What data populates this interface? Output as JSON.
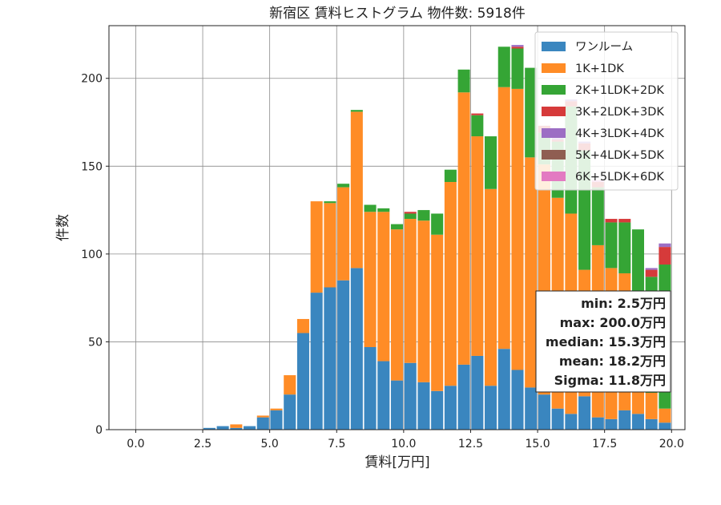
{
  "chart_data": {
    "type": "bar",
    "stacked": true,
    "title": "新宿区 賃料ヒストグラム  物件数: 5918件",
    "xlabel": "賃料[万円]",
    "ylabel": "件数",
    "xlim": [
      -1.0,
      20.5
    ],
    "ylim": [
      0,
      230
    ],
    "xticks": [
      0.0,
      2.5,
      5.0,
      7.5,
      10.0,
      12.5,
      15.0,
      17.5,
      20.0
    ],
    "xtick_labels": [
      "0.0",
      "2.5",
      "5.0",
      "7.5",
      "10.0",
      "12.5",
      "15.0",
      "17.5",
      "20.0"
    ],
    "yticks": [
      0,
      50,
      100,
      150,
      200
    ],
    "ytick_labels": [
      "0",
      "50",
      "100",
      "150",
      "200"
    ],
    "grid": true,
    "legend_position": "top-right",
    "bin_width": 0.5,
    "x": [
      2.0,
      2.5,
      3.0,
      3.5,
      4.0,
      4.5,
      5.0,
      5.5,
      6.0,
      6.5,
      7.0,
      7.5,
      8.0,
      8.5,
      9.0,
      9.5,
      10.0,
      10.5,
      11.0,
      11.5,
      12.0,
      12.5,
      13.0,
      13.5,
      14.0,
      14.5,
      15.0,
      15.5,
      16.0,
      16.5,
      17.0,
      17.5,
      18.0,
      18.5,
      19.0,
      19.5
    ],
    "series": [
      {
        "name": "ワンルーム",
        "color": "#3a86bf",
        "values": [
          0,
          1,
          2,
          1,
          2,
          7,
          11,
          20,
          55,
          78,
          81,
          85,
          92,
          47,
          39,
          28,
          38,
          27,
          22,
          25,
          37,
          42,
          25,
          46,
          34,
          24,
          20,
          12,
          9,
          19,
          7,
          6,
          11,
          9,
          6,
          4
        ]
      },
      {
        "name": "1K+1DK",
        "color": "#ff8c26",
        "values": [
          0,
          0,
          0,
          2,
          0,
          1,
          1,
          11,
          8,
          52,
          48,
          53,
          89,
          77,
          85,
          86,
          82,
          92,
          89,
          116,
          155,
          125,
          112,
          149,
          160,
          131,
          131,
          120,
          114,
          72,
          98,
          86,
          78,
          64,
          15,
          8
        ]
      },
      {
        "name": "2K+1LDK+2DK",
        "color": "#35a535",
        "values": [
          0,
          0,
          0,
          0,
          0,
          0,
          0,
          0,
          0,
          0,
          1,
          2,
          1,
          4,
          2,
          3,
          3,
          6,
          12,
          7,
          13,
          12,
          30,
          23,
          23,
          51,
          18,
          32,
          61,
          68,
          33,
          26,
          29,
          41,
          66,
          82
        ]
      },
      {
        "name": "3K+2LDK+3DK",
        "color": "#d63a3a",
        "values": [
          0,
          0,
          0,
          0,
          0,
          0,
          0,
          0,
          0,
          0,
          0,
          0,
          0,
          0,
          0,
          0,
          1,
          0,
          0,
          0,
          0,
          1,
          0,
          0,
          1,
          0,
          4,
          1,
          3,
          4,
          3,
          2,
          2,
          0,
          4,
          10
        ]
      },
      {
        "name": "4K+3LDK+4DK",
        "color": "#9c6ec4",
        "values": [
          0,
          0,
          0,
          0,
          0,
          0,
          0,
          0,
          0,
          0,
          0,
          0,
          0,
          0,
          0,
          0,
          0,
          0,
          0,
          0,
          0,
          0,
          0,
          0,
          1,
          0,
          0,
          1,
          1,
          1,
          0,
          0,
          0,
          0,
          1,
          2
        ]
      },
      {
        "name": "5K+4LDK+5DK",
        "color": "#8f5e52",
        "values": [
          0,
          0,
          0,
          0,
          0,
          0,
          0,
          0,
          0,
          0,
          0,
          0,
          0,
          0,
          0,
          0,
          0,
          0,
          0,
          0,
          0,
          0,
          0,
          0,
          0,
          0,
          0,
          0,
          0,
          0,
          0,
          0,
          0,
          0,
          0,
          0
        ]
      },
      {
        "name": "6K+5LDK+6DK",
        "color": "#e37ac2",
        "values": [
          0,
          0,
          0,
          0,
          0,
          0,
          0,
          0,
          0,
          0,
          0,
          0,
          0,
          0,
          0,
          0,
          0,
          0,
          0,
          0,
          0,
          0,
          0,
          0,
          0,
          0,
          0,
          0,
          0,
          0,
          1,
          0,
          0,
          0,
          0,
          0
        ]
      }
    ],
    "stats_box": [
      "min: 2.5万円",
      "max: 200.0万円",
      "median: 15.3万円",
      "mean: 18.2万円",
      "Sigma: 11.8万円"
    ]
  }
}
